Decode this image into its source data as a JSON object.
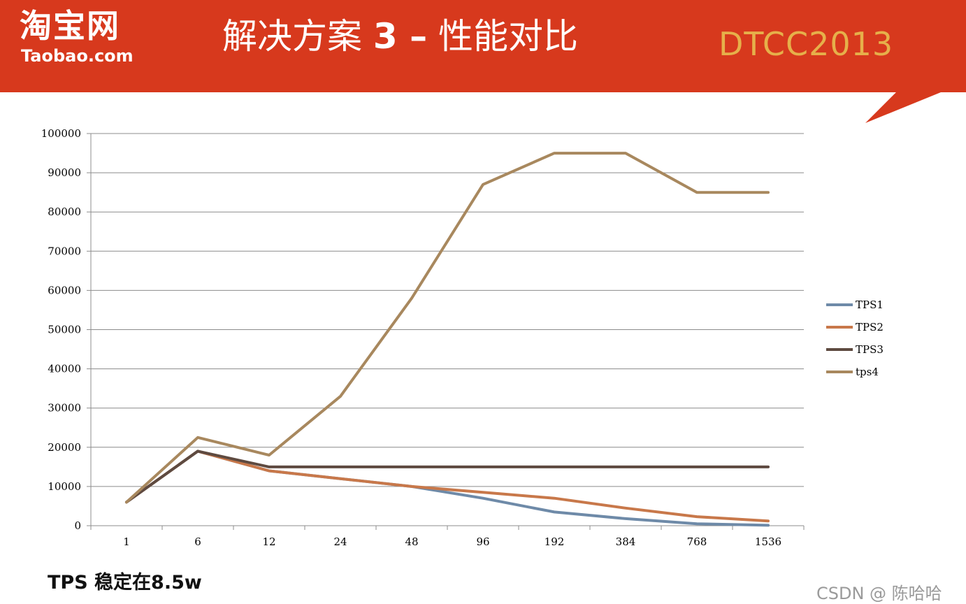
{
  "header": {
    "logo_cn": "淘宝网",
    "logo_en": "Taobao.com",
    "title_prefix": "解决方案 ",
    "title_num": "3 –",
    "title_suffix": " 性能对比",
    "conference": "DTCC2013"
  },
  "footnote": "TPS 稳定在8.5w",
  "watermark": "CSDN @ 陈哈哈",
  "colors": {
    "header_bg": "#d7391d",
    "conference_text": "#e6b04a",
    "TPS1": "#6e8aa8",
    "TPS2": "#c8784a",
    "TPS3": "#5e4a40",
    "tps4": "#a8885e"
  },
  "chart_data": {
    "type": "line",
    "categories": [
      "1",
      "6",
      "12",
      "24",
      "48",
      "96",
      "192",
      "384",
      "768",
      "1536"
    ],
    "ylim": [
      0,
      100000
    ],
    "yticks": [
      0,
      10000,
      20000,
      30000,
      40000,
      50000,
      60000,
      70000,
      80000,
      90000,
      100000
    ],
    "grid": true,
    "legend_position": "right",
    "series": [
      {
        "name": "TPS1",
        "values": [
          6000,
          19000,
          14000,
          12000,
          10000,
          7000,
          3500,
          1800,
          500,
          100
        ]
      },
      {
        "name": "TPS2",
        "values": [
          6000,
          19000,
          14000,
          12000,
          10000,
          8500,
          7000,
          4500,
          2300,
          1200
        ]
      },
      {
        "name": "TPS3",
        "values": [
          6000,
          19000,
          15000,
          15000,
          15000,
          15000,
          15000,
          15000,
          15000,
          15000
        ]
      },
      {
        "name": "tps4",
        "values": [
          6000,
          22500,
          18000,
          33000,
          58000,
          87000,
          95000,
          95000,
          85000,
          85000
        ]
      }
    ]
  }
}
